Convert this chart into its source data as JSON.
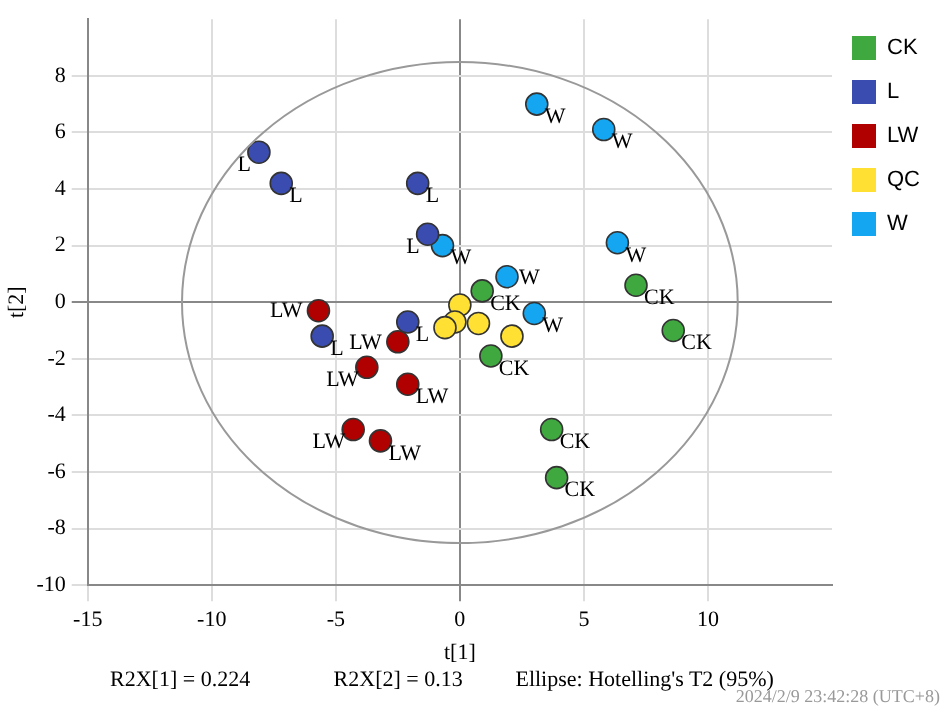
{
  "chart_data": {
    "type": "scatter",
    "xlabel": "t[1]",
    "ylabel": "t[2]",
    "xlim": [
      -15,
      15
    ],
    "ylim": [
      -10,
      10
    ],
    "xticks": [
      -15,
      -10,
      -5,
      0,
      5,
      10
    ],
    "yticks": [
      -10,
      -8,
      -6,
      -4,
      -2,
      0,
      2,
      4,
      6,
      8
    ],
    "grid": true,
    "legend": "top right",
    "marker": "circle",
    "series": [
      {
        "name": "CK",
        "color": "#3fa83f",
        "x": [
          0.9,
          7.1,
          8.6,
          1.25,
          3.7,
          3.9
        ],
        "values": [
          0.4,
          0.6,
          -1.0,
          -1.9,
          -4.5,
          -6.2
        ],
        "value_labels": [
          "CK",
          "CK",
          "CK",
          "CK",
          "CK",
          "CK"
        ]
      },
      {
        "name": "L",
        "color": "#3b4cb0",
        "x": [
          -8.1,
          -7.2,
          -1.7,
          -1.3,
          -5.55,
          -2.1
        ],
        "values": [
          5.3,
          4.2,
          4.2,
          2.4,
          -1.2,
          -0.7
        ],
        "value_labels": [
          "L",
          "L",
          "L",
          "L",
          "L",
          "L"
        ]
      },
      {
        "name": "LW",
        "color": "#b00000",
        "x": [
          -5.7,
          -2.5,
          -3.75,
          -2.1,
          -4.3,
          -3.2
        ],
        "values": [
          -0.3,
          -1.4,
          -2.3,
          -2.9,
          -4.5,
          -4.9
        ],
        "value_labels": [
          "LW",
          "LW",
          "LW",
          "LW",
          "LW",
          "LW"
        ]
      },
      {
        "name": "QC",
        "color": "#ffe033",
        "x": [
          0,
          -0.2,
          -0.6,
          0.75,
          2.1
        ],
        "values": [
          -0.1,
          -0.7,
          -0.9,
          -0.75,
          -1.2
        ]
      },
      {
        "name": "W",
        "color": "#14a6f0",
        "x": [
          3.1,
          5.8,
          6.35,
          -0.7,
          1.9,
          3.0
        ],
        "values": [
          7.0,
          6.1,
          2.1,
          2.0,
          0.9,
          -0.4
        ],
        "value_labels": [
          "W",
          "W",
          "W",
          "W",
          "W",
          "W"
        ]
      }
    ],
    "annotations": [
      "R2X[1] = 0.224",
      "R2X[2] = 0.13",
      "Ellipse: Hotelling's T2 (95%)",
      "2024/2/9 23:42:28 (UTC+8)"
    ]
  }
}
